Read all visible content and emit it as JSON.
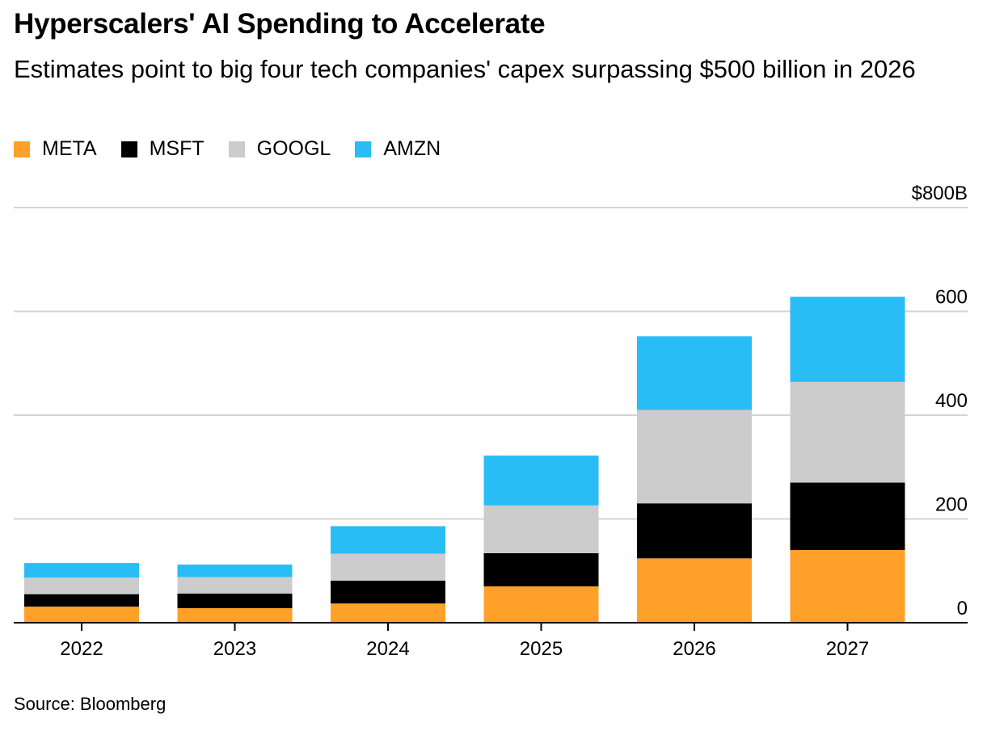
{
  "title": "Hyperscalers' AI Spending to Accelerate",
  "subtitle": "Estimates point to big four tech companies' capex surpassing $500 billion in 2026",
  "source": "Source: Bloomberg",
  "colors": {
    "META": "#ffa028",
    "MSFT": "#000000",
    "GOOGL": "#cccccc",
    "AMZN": "#29bdf5",
    "grid": "#d4d4d4",
    "axis": "#000000"
  },
  "chart_data": {
    "type": "bar",
    "stacked": true,
    "categories": [
      "2022",
      "2023",
      "2024",
      "2025",
      "2026",
      "2027"
    ],
    "series": [
      {
        "name": "META",
        "values": [
          31,
          28,
          37,
          70,
          124,
          140
        ]
      },
      {
        "name": "MSFT",
        "values": [
          24,
          28,
          44,
          64,
          106,
          130
        ]
      },
      {
        "name": "GOOGL",
        "values": [
          32,
          32,
          52,
          92,
          180,
          194
        ]
      },
      {
        "name": "AMZN",
        "values": [
          28,
          24,
          53,
          96,
          142,
          164
        ]
      }
    ],
    "ylim": [
      0,
      800
    ],
    "yticks": [
      0,
      200,
      400,
      600,
      800
    ],
    "ytick_labels": [
      "0",
      "200",
      "400",
      "600",
      "$800B"
    ],
    "y_axis_position": "right",
    "grid": true,
    "legend_position": "top-left"
  }
}
